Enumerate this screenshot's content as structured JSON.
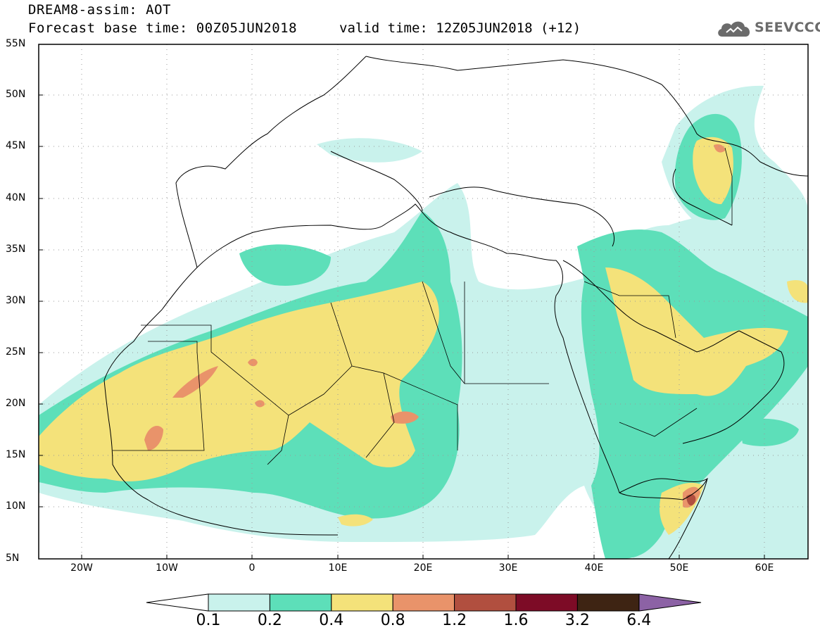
{
  "header": {
    "title": "DREAM8-assim: AOT",
    "base_time": "Forecast base time: 00Z05JUN2018",
    "valid_time": "valid time: 12Z05JUN2018 (+12)",
    "logo_text": "SEEVCCC",
    "logo_icon": "cloud-icon"
  },
  "axes": {
    "lat_labels": [
      "55N",
      "50N",
      "45N",
      "40N",
      "35N",
      "30N",
      "25N",
      "20N",
      "15N",
      "10N",
      "5N"
    ],
    "lon_labels": [
      "20W",
      "10W",
      "0",
      "10E",
      "20E",
      "30E",
      "40E",
      "50E",
      "60E"
    ]
  },
  "colorbar": {
    "labels": [
      "0.1",
      "0.2",
      "0.4",
      "0.8",
      "1.2",
      "1.6",
      "3.2",
      "6.4"
    ],
    "colors": [
      "#c9f2ec",
      "#5ddfb9",
      "#f4e27a",
      "#e9936a",
      "#b14f3f",
      "#7d0b26",
      "#3e2413",
      "#8c62a5"
    ]
  },
  "colors": {
    "frame": "#000000",
    "grid": "#9a9a9a",
    "coast": "#000000"
  }
}
